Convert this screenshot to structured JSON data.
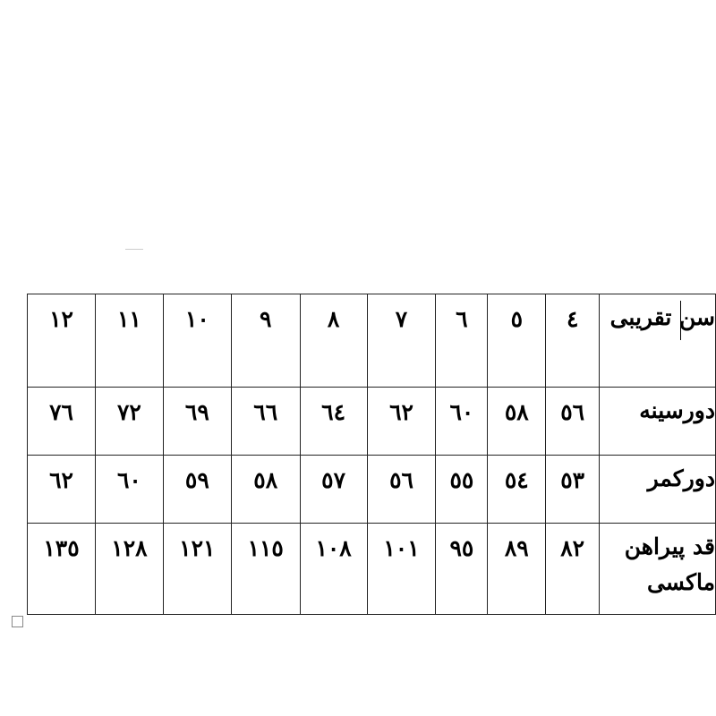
{
  "table": {
    "rows": [
      {
        "label": "سن تقریبی",
        "values": [
          "٤",
          "٥",
          "٦",
          "٧",
          "٨",
          "٩",
          "١٠",
          "١١",
          "١٢"
        ]
      },
      {
        "label": "دورسینه",
        "values": [
          "٥٦",
          "٥٨",
          "٦٠",
          "٦٢",
          "٦٤",
          "٦٦",
          "٦٩",
          "٧٢",
          "٧٦"
        ]
      },
      {
        "label": "دورکمر",
        "values": [
          "٥٣",
          "٥٤",
          "٥٥",
          "٥٦",
          "٥٧",
          "٥٨",
          "٥٩",
          "٦٠",
          "٦٢"
        ]
      },
      {
        "label": "قد پیراهن ماکسی",
        "values": [
          "٨٢",
          "٨٩",
          "٩٥",
          "١٠١",
          "١٠٨",
          "١١٥",
          "١٢١",
          "١٢٨",
          "١٣٥"
        ]
      }
    ]
  }
}
